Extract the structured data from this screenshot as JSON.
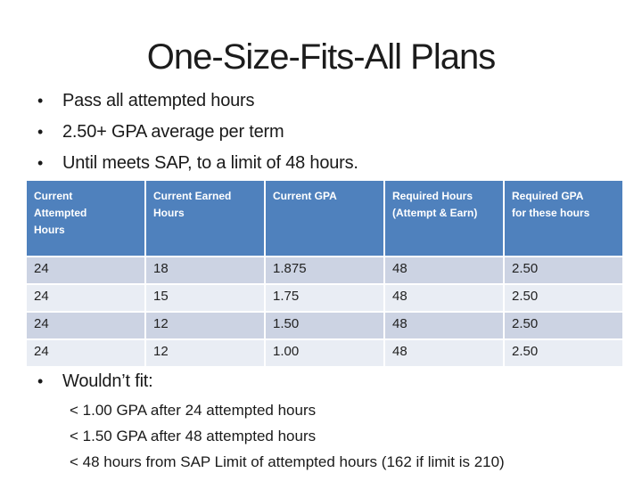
{
  "slide": {
    "title": "One-Size-Fits-All Plans",
    "bullets": [
      "Pass all attempted hours",
      "2.50+ GPA average per term",
      "Until meets SAP, to a limit of 48 hours."
    ],
    "bullet_glyph": "•",
    "table": {
      "headers": [
        "Current Attempted Hours",
        "Current Earned Hours",
        "Current GPA",
        "Required Hours (Attempt & Earn)",
        "Required GPA for these hours"
      ],
      "rows": [
        [
          "24",
          "18",
          "1.875",
          "48",
          "2.50"
        ],
        [
          "24",
          "15",
          "1.75",
          "48",
          "2.50"
        ],
        [
          "24",
          "12",
          "1.50",
          "48",
          "2.50"
        ],
        [
          "24",
          "12",
          "1.00",
          "48",
          "2.50"
        ]
      ],
      "colors": {
        "header_bg": "#4f81bd",
        "header_text": "#ffffff",
        "band_dark": "#ccd3e3",
        "band_light": "#e9edf4"
      }
    },
    "wouldnt_fit": {
      "label": "Wouldn’t fit:",
      "items": [
        "< 1.00 GPA after 24 attempted hours",
        "< 1.50 GPA after 48 attempted hours",
        "< 48 hours from SAP Limit of attempted hours (162 if limit is 210)"
      ]
    }
  }
}
